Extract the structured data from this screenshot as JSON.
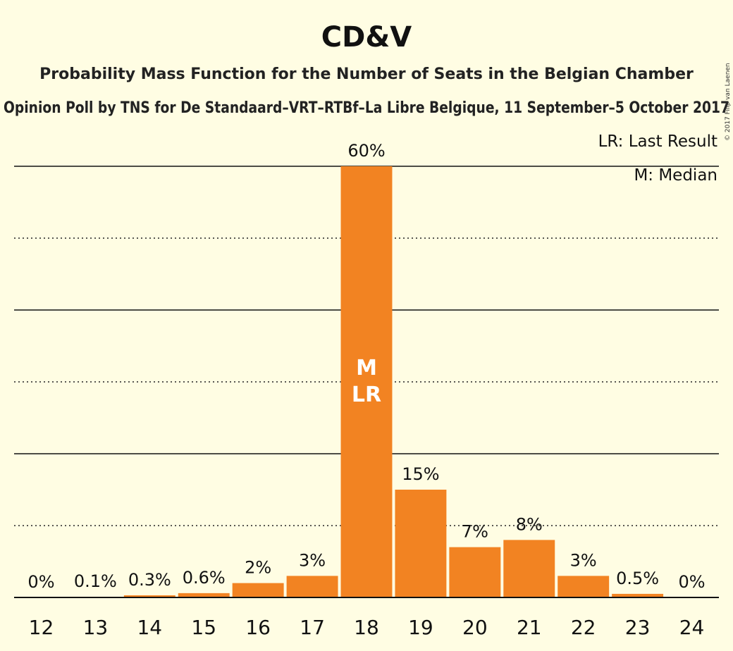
{
  "chart_data": {
    "type": "bar",
    "title": "CD&V",
    "subtitle": "Probability Mass Function for the Number of Seats in the Belgian Chamber",
    "subtitle2": "Opinion Poll by TNS for De Standaard–VRT–RTBf–La Libre Belgique, 11 September–5 October 2017",
    "copyright": "© 2017 Filip van Laenen",
    "legend": [
      "LR: Last Result",
      "M: Median"
    ],
    "legend_placement": "top-right",
    "categories": [
      "12",
      "13",
      "14",
      "15",
      "16",
      "17",
      "18",
      "19",
      "20",
      "21",
      "22",
      "23",
      "24"
    ],
    "values": [
      0,
      0.1,
      0.3,
      0.6,
      2,
      3,
      60,
      15,
      7,
      8,
      3,
      0.5,
      0
    ],
    "labels": [
      "0%",
      "0.1%",
      "0.3%",
      "0.6%",
      "2%",
      "3%",
      "60%",
      "15%",
      "7%",
      "8%",
      "3%",
      "0.5%",
      "0%"
    ],
    "bar_markers": {
      "18": [
        "M",
        "LR"
      ]
    },
    "ylim": [
      0,
      60
    ],
    "gridlines_solid": [
      20,
      40,
      60
    ],
    "gridlines_dotted": [
      10,
      30,
      50
    ],
    "bar_color": "#F28322",
    "background_color": "#FFFDE3"
  }
}
